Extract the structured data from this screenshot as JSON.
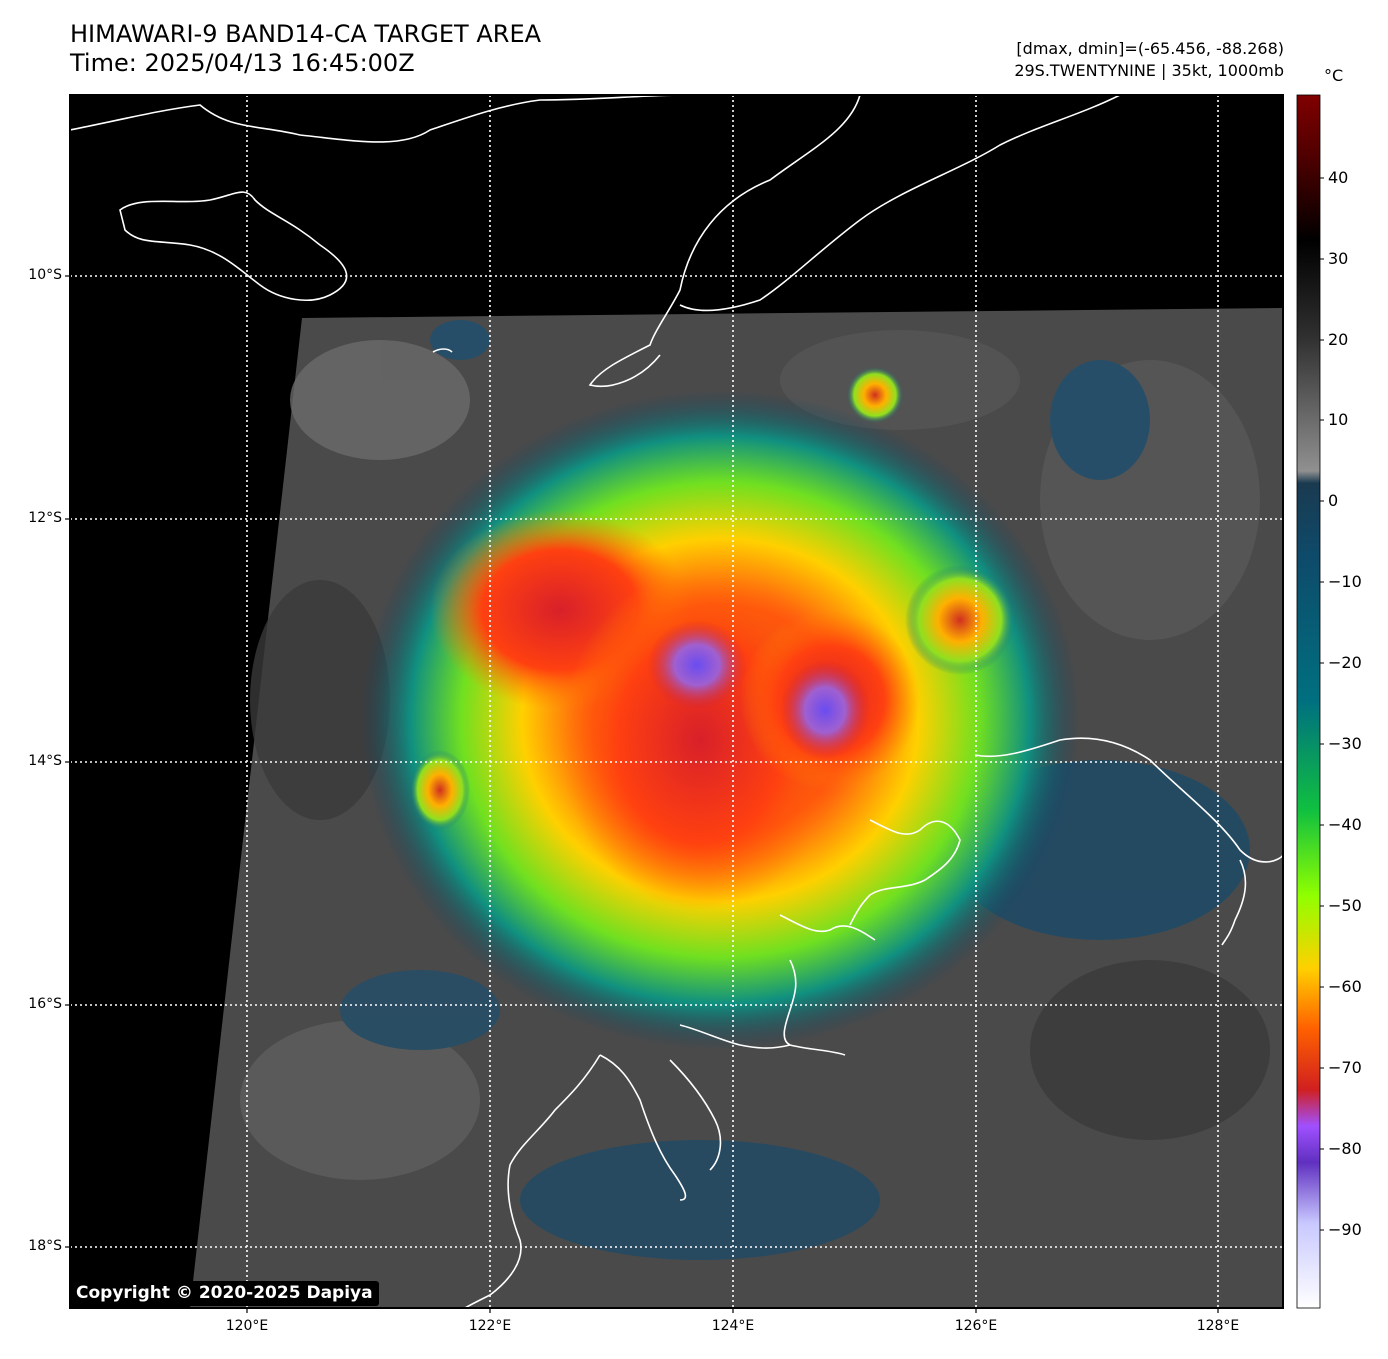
{
  "title": {
    "line1": "HIMAWARI-9 BAND14-CA TARGET AREA",
    "line2": "Time: 2025/04/13 16:45:00Z"
  },
  "meta": {
    "line1": "[dmax, dmin]=(-65.456, -88.268)",
    "line2": "29S.TWENTYNINE | 35kt, 1000mb"
  },
  "colorbar": {
    "unit": "°C",
    "ticks": [
      "40",
      "30",
      "20",
      "10",
      "0",
      "−10",
      "−20",
      "−30",
      "−40",
      "−50",
      "−60",
      "−70",
      "−80",
      "−90"
    ],
    "stops": [
      "#ffffff",
      "#b8b8ff",
      "#6030c0",
      "#a050ff",
      "#d02020",
      "#ff6000",
      "#ffd000",
      "#90ff00",
      "#10c040",
      "#007080",
      "#104060",
      "#606060",
      "#202020",
      "#000000",
      "#800000"
    ]
  },
  "axes": {
    "lat_labels": [
      "10°S",
      "12°S",
      "14°S",
      "16°S",
      "18°S"
    ],
    "lon_labels": [
      "120°E",
      "122°E",
      "124°E",
      "126°E",
      "128°E"
    ]
  },
  "copyright": "Copyright © 2020-2025 Dapiya"
}
